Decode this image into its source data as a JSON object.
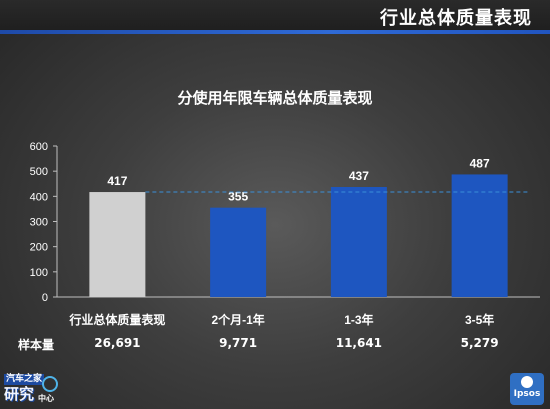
{
  "page_title": "行业总体质量表现",
  "sample_label": "样本量",
  "sample_sizes": [
    "26,691",
    "9,771",
    "11,641",
    "5,279"
  ],
  "logos": {
    "left_line1": "汽车之家",
    "left_line2": "研究",
    "left_line3": "中心",
    "right": "Ipsos"
  },
  "colors": {
    "industry_bar": "#d0d0d0",
    "segment_bar": "#1e56c0",
    "average_line": "#3a8fd8"
  },
  "chart_data": {
    "type": "bar",
    "title": "分使用年限车辆总体质量表现",
    "xlabel": "",
    "ylabel": "",
    "categories": [
      "行业总体质量表现",
      "2个月-1年",
      "1-3年",
      "3-5年"
    ],
    "values": [
      417,
      355,
      437,
      487
    ],
    "data_labels": [
      "417",
      "355",
      "437",
      "487"
    ],
    "ylim": [
      0,
      600
    ],
    "yticks": [
      0,
      100,
      200,
      300,
      400,
      500,
      600
    ],
    "reference_line": 417,
    "grid": false,
    "legend": "none"
  }
}
